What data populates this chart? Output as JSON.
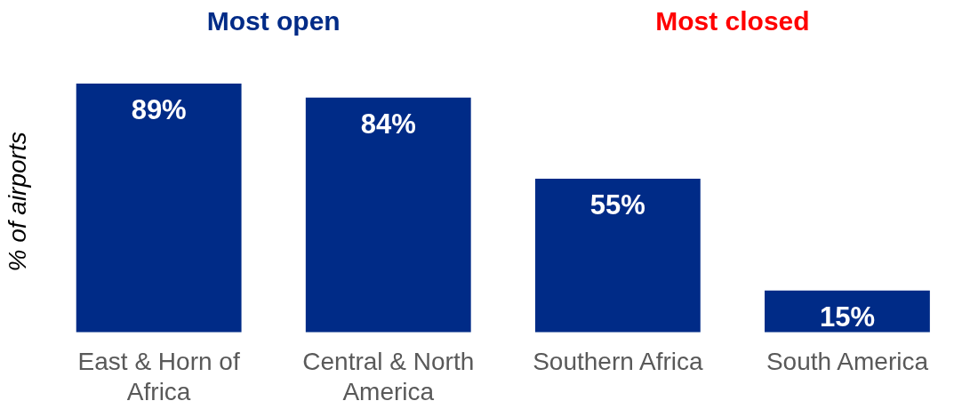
{
  "chart_data": {
    "type": "bar",
    "ylabel": "% of airports",
    "categories": [
      "East & Horn of Africa",
      "Central & North America",
      "Southern Africa",
      "South America"
    ],
    "values": [
      89,
      84,
      55,
      15
    ],
    "value_labels": [
      "89%",
      "84%",
      "55%",
      "15%"
    ],
    "color": "#002b87",
    "annotations": [
      "Most open",
      "Most closed"
    ]
  }
}
